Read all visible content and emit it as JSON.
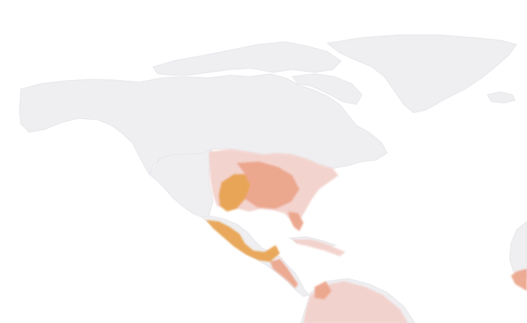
{
  "map": {
    "projection": "world-cropped-north-america",
    "colors": {
      "background": "#ffffff",
      "land": "#efeef1",
      "land_edge": "#e6e5e9",
      "low": "#f2cfc9",
      "mid": "#eba48a",
      "high": "#e8a24e"
    },
    "regions": [
      {
        "name": "canada-alaska",
        "level": 0
      },
      {
        "name": "arctic-archipelago",
        "level": 0
      },
      {
        "name": "greenland",
        "level": 0
      },
      {
        "name": "western-us",
        "level": 0
      },
      {
        "name": "eastern-us",
        "level": 0.45
      },
      {
        "name": "texas-great-plains",
        "level": 0.9
      },
      {
        "name": "mexico",
        "level": 0.85
      },
      {
        "name": "central-america",
        "level": 0.7
      },
      {
        "name": "caribbean-islands",
        "level": 0.4
      },
      {
        "name": "northern-south-america",
        "level": 0.5
      },
      {
        "name": "west-africa-edge",
        "level": 0.6
      }
    ]
  }
}
